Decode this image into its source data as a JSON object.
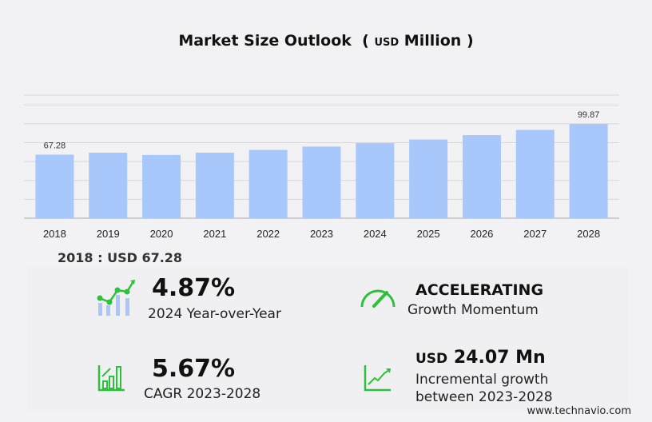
{
  "chart_data": {
    "type": "bar",
    "title": "Market Size Outlook",
    "unit_prefix": "USD",
    "unit": "Million",
    "categories": [
      "2018",
      "2019",
      "2020",
      "2021",
      "2022",
      "2023",
      "2024",
      "2025",
      "2026",
      "2027",
      "2028"
    ],
    "values": [
      67.28,
      69.4,
      66.9,
      69.4,
      72.3,
      75.8,
      79.49,
      83.3,
      88.0,
      93.5,
      99.87
    ],
    "data_labels": {
      "0": "67.28",
      "10": "99.87"
    },
    "ylim": [
      0,
      130
    ],
    "grid": true,
    "bar_color": "#a8c8fc"
  },
  "selection": "2018 : USD  67.28",
  "stats": {
    "yoy": {
      "value": "4.87%",
      "label": "2024 Year-over-Year"
    },
    "momentum": {
      "value": "ACCELERATING",
      "label": "Growth Momentum"
    },
    "cagr": {
      "value": "5.67%",
      "label": "CAGR 2023-2028"
    },
    "incremental": {
      "prefix": "USD",
      "value": "24.07 Mn",
      "label1": "Incremental growth",
      "label2": "between 2023-2028"
    }
  },
  "footer": "www.technavio.com",
  "colors": {
    "accent": "#2ec13b"
  }
}
